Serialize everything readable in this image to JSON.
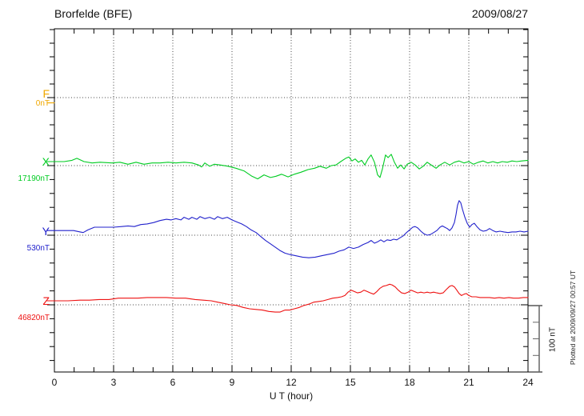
{
  "header": {
    "station_title": "Brorfelde (BFE)",
    "date": "2009/08/27"
  },
  "x_axis": {
    "label": "U T (hour)",
    "ticks": [
      "0",
      "3",
      "6",
      "9",
      "12",
      "15",
      "18",
      "21",
      "24"
    ]
  },
  "scale_bar": {
    "label": "100 nT",
    "span_nT": 100
  },
  "side_note": {
    "plotted_at": "Plotted at 2009/09/27 00:57 UT"
  },
  "chart_data": {
    "type": "line",
    "title": "Brorfelde (BFE) magnetogram for 2009/08/27",
    "xlabel": "U T (hour)",
    "xlim": [
      0,
      24
    ],
    "x_tick_step_hours": 3,
    "grid": "dotted",
    "legend_position": "left-margin",
    "y_scale_note": "100 nT scale bar at lower right; values are nT offsets from each component baseline",
    "series": [
      {
        "name": "F",
        "baseline": "0nT",
        "color": "#f0a800",
        "points": [
          [
            0,
            -8
          ]
        ]
      },
      {
        "name": "X",
        "baseline": "17190nT",
        "color": "#00cc22",
        "points": [
          [
            0,
            6
          ],
          [
            0.49,
            6
          ],
          [
            0.89,
            8
          ],
          [
            1.14,
            11
          ],
          [
            1.5,
            6
          ],
          [
            1.91,
            4
          ],
          [
            2.31,
            5
          ],
          [
            2.92,
            4
          ],
          [
            3.32,
            5
          ],
          [
            3.73,
            2
          ],
          [
            4.14,
            5
          ],
          [
            4.54,
            2
          ],
          [
            4.95,
            4
          ],
          [
            5.35,
            4
          ],
          [
            5.76,
            5
          ],
          [
            6.16,
            4
          ],
          [
            6.57,
            5
          ],
          [
            6.97,
            4
          ],
          [
            7.3,
            1
          ],
          [
            7.46,
            -2
          ],
          [
            7.62,
            4
          ],
          [
            7.87,
            -1
          ],
          [
            8.11,
            2
          ],
          [
            8.39,
            1
          ],
          [
            8.8,
            -1
          ],
          [
            9.2,
            -4
          ],
          [
            9.61,
            -8
          ],
          [
            10.01,
            -16
          ],
          [
            10.3,
            -20
          ],
          [
            10.62,
            -14
          ],
          [
            10.95,
            -18
          ],
          [
            11.23,
            -16
          ],
          [
            11.51,
            -13
          ],
          [
            11.84,
            -17
          ],
          [
            12.16,
            -13
          ],
          [
            12.49,
            -10
          ],
          [
            12.85,
            -6
          ],
          [
            13.18,
            -4
          ],
          [
            13.46,
            -1
          ],
          [
            13.78,
            -4
          ],
          [
            14.03,
            0
          ],
          [
            14.27,
            1
          ],
          [
            14.51,
            6
          ],
          [
            14.76,
            11
          ],
          [
            14.92,
            13
          ],
          [
            15.08,
            7
          ],
          [
            15.24,
            10
          ],
          [
            15.41,
            5
          ],
          [
            15.57,
            8
          ],
          [
            15.73,
            1
          ],
          [
            15.89,
            10
          ],
          [
            16.05,
            16
          ],
          [
            16.22,
            5
          ],
          [
            16.38,
            -14
          ],
          [
            16.5,
            -18
          ],
          [
            16.62,
            -5
          ],
          [
            16.78,
            16
          ],
          [
            16.91,
            12
          ],
          [
            17.07,
            17
          ],
          [
            17.23,
            5
          ],
          [
            17.39,
            -4
          ],
          [
            17.55,
            1
          ],
          [
            17.72,
            -5
          ],
          [
            17.88,
            2
          ],
          [
            18.08,
            5
          ],
          [
            18.28,
            1
          ],
          [
            18.49,
            -5
          ],
          [
            18.69,
            -1
          ],
          [
            18.89,
            5
          ],
          [
            19.14,
            0
          ],
          [
            19.34,
            -4
          ],
          [
            19.54,
            1
          ],
          [
            19.78,
            5
          ],
          [
            20.03,
            1
          ],
          [
            20.27,
            5
          ],
          [
            20.51,
            7
          ],
          [
            20.76,
            4
          ],
          [
            21,
            6
          ],
          [
            21.24,
            2
          ],
          [
            21.49,
            5
          ],
          [
            21.73,
            7
          ],
          [
            21.97,
            4
          ],
          [
            22.22,
            6
          ],
          [
            22.46,
            4
          ],
          [
            22.7,
            6
          ],
          [
            22.95,
            5
          ],
          [
            23.19,
            7
          ],
          [
            23.43,
            6
          ],
          [
            23.68,
            7
          ],
          [
            24,
            8
          ]
        ]
      },
      {
        "name": "Y",
        "baseline": "530nT",
        "color": "#2222cc",
        "points": [
          [
            0,
            7
          ],
          [
            0.49,
            7
          ],
          [
            0.97,
            7
          ],
          [
            1.3,
            5
          ],
          [
            1.46,
            4
          ],
          [
            1.7,
            8
          ],
          [
            2.03,
            12
          ],
          [
            2.51,
            12
          ],
          [
            3,
            12
          ],
          [
            3.41,
            13
          ],
          [
            3.73,
            14
          ],
          [
            4.05,
            13
          ],
          [
            4.38,
            16
          ],
          [
            4.7,
            17
          ],
          [
            5.03,
            19
          ],
          [
            5.35,
            22
          ],
          [
            5.68,
            24
          ],
          [
            5.92,
            23
          ],
          [
            6.16,
            25
          ],
          [
            6.41,
            23
          ],
          [
            6.57,
            27
          ],
          [
            6.81,
            24
          ],
          [
            6.97,
            27
          ],
          [
            7.22,
            24
          ],
          [
            7.38,
            28
          ],
          [
            7.62,
            25
          ],
          [
            7.87,
            27
          ],
          [
            8.11,
            24
          ],
          [
            8.27,
            28
          ],
          [
            8.51,
            25
          ],
          [
            8.76,
            27
          ],
          [
            9,
            23
          ],
          [
            9.24,
            20
          ],
          [
            9.49,
            17
          ],
          [
            9.73,
            13
          ],
          [
            9.97,
            8
          ],
          [
            10.22,
            4
          ],
          [
            10.46,
            -2
          ],
          [
            10.7,
            -8
          ],
          [
            10.95,
            -13
          ],
          [
            11.19,
            -18
          ],
          [
            11.43,
            -23
          ],
          [
            11.68,
            -27
          ],
          [
            11.92,
            -29
          ],
          [
            12.24,
            -31
          ],
          [
            12.57,
            -33
          ],
          [
            12.89,
            -34
          ],
          [
            13.22,
            -33
          ],
          [
            13.54,
            -31
          ],
          [
            13.86,
            -29
          ],
          [
            14.19,
            -27
          ],
          [
            14.43,
            -24
          ],
          [
            14.68,
            -22
          ],
          [
            14.92,
            -18
          ],
          [
            15.16,
            -20
          ],
          [
            15.41,
            -18
          ],
          [
            15.65,
            -14
          ],
          [
            15.89,
            -11
          ],
          [
            16.05,
            -8
          ],
          [
            16.22,
            -12
          ],
          [
            16.38,
            -10
          ],
          [
            16.54,
            -7
          ],
          [
            16.7,
            -10
          ],
          [
            16.86,
            -7
          ],
          [
            17.03,
            -8
          ],
          [
            17.19,
            -6
          ],
          [
            17.35,
            -7
          ],
          [
            17.51,
            -4
          ],
          [
            17.68,
            -1
          ],
          [
            17.84,
            4
          ],
          [
            18,
            8
          ],
          [
            18.16,
            12
          ],
          [
            18.28,
            13
          ],
          [
            18.41,
            11
          ],
          [
            18.57,
            6
          ],
          [
            18.73,
            2
          ],
          [
            18.89,
            0
          ],
          [
            19.05,
            1
          ],
          [
            19.22,
            4
          ],
          [
            19.38,
            7
          ],
          [
            19.54,
            12
          ],
          [
            19.66,
            14
          ],
          [
            19.78,
            12
          ],
          [
            19.91,
            10
          ],
          [
            20.03,
            7
          ],
          [
            20.15,
            11
          ],
          [
            20.27,
            19
          ],
          [
            20.35,
            31
          ],
          [
            20.43,
            45
          ],
          [
            20.51,
            52
          ],
          [
            20.59,
            49
          ],
          [
            20.68,
            39
          ],
          [
            20.8,
            27
          ],
          [
            20.92,
            18
          ],
          [
            21.04,
            12
          ],
          [
            21.16,
            16
          ],
          [
            21.28,
            18
          ],
          [
            21.41,
            13
          ],
          [
            21.57,
            8
          ],
          [
            21.73,
            6
          ],
          [
            21.89,
            7
          ],
          [
            22.05,
            10
          ],
          [
            22.22,
            7
          ],
          [
            22.38,
            5
          ],
          [
            22.58,
            6
          ],
          [
            22.78,
            5
          ],
          [
            22.99,
            4
          ],
          [
            23.19,
            5
          ],
          [
            23.39,
            5
          ],
          [
            23.6,
            6
          ],
          [
            23.8,
            5
          ],
          [
            24,
            6
          ]
        ]
      },
      {
        "name": "Z",
        "baseline": "46820nT",
        "color": "#ee1111",
        "points": [
          [
            0,
            6
          ],
          [
            0.69,
            6
          ],
          [
            1.3,
            7
          ],
          [
            1.78,
            7
          ],
          [
            2.27,
            8
          ],
          [
            2.76,
            8
          ],
          [
            3.24,
            10
          ],
          [
            3.73,
            10
          ],
          [
            4.22,
            10
          ],
          [
            4.7,
            11
          ],
          [
            5.19,
            11
          ],
          [
            5.68,
            11
          ],
          [
            6.16,
            10
          ],
          [
            6.65,
            10
          ],
          [
            7.14,
            8
          ],
          [
            7.54,
            7
          ],
          [
            7.95,
            6
          ],
          [
            8.27,
            4
          ],
          [
            8.6,
            2
          ],
          [
            8.92,
            0
          ],
          [
            9.24,
            -1
          ],
          [
            9.57,
            -4
          ],
          [
            9.89,
            -6
          ],
          [
            10.22,
            -7
          ],
          [
            10.54,
            -8
          ],
          [
            10.87,
            -10
          ],
          [
            11.19,
            -11
          ],
          [
            11.43,
            -11
          ],
          [
            11.68,
            -8
          ],
          [
            11.92,
            -8
          ],
          [
            12.16,
            -6
          ],
          [
            12.41,
            -4
          ],
          [
            12.65,
            -1
          ],
          [
            12.89,
            1
          ],
          [
            13.14,
            4
          ],
          [
            13.38,
            5
          ],
          [
            13.62,
            6
          ],
          [
            13.86,
            8
          ],
          [
            14.11,
            10
          ],
          [
            14.35,
            11
          ],
          [
            14.55,
            12
          ],
          [
            14.72,
            14
          ],
          [
            14.88,
            19
          ],
          [
            15.04,
            22
          ],
          [
            15.2,
            20
          ],
          [
            15.36,
            18
          ],
          [
            15.53,
            19
          ],
          [
            15.69,
            22
          ],
          [
            15.85,
            20
          ],
          [
            16.01,
            18
          ],
          [
            16.18,
            16
          ],
          [
            16.34,
            20
          ],
          [
            16.5,
            25
          ],
          [
            16.66,
            28
          ],
          [
            16.82,
            29
          ],
          [
            16.99,
            31
          ],
          [
            17.11,
            30
          ],
          [
            17.27,
            27
          ],
          [
            17.43,
            22
          ],
          [
            17.59,
            18
          ],
          [
            17.76,
            17
          ],
          [
            17.92,
            19
          ],
          [
            18.08,
            22
          ],
          [
            18.24,
            20
          ],
          [
            18.41,
            18
          ],
          [
            18.57,
            19
          ],
          [
            18.73,
            18
          ],
          [
            18.89,
            19
          ],
          [
            19.05,
            18
          ],
          [
            19.22,
            19
          ],
          [
            19.38,
            18
          ],
          [
            19.54,
            17
          ],
          [
            19.7,
            18
          ],
          [
            19.86,
            23
          ],
          [
            20.03,
            28
          ],
          [
            20.15,
            29
          ],
          [
            20.27,
            27
          ],
          [
            20.39,
            22
          ],
          [
            20.51,
            17
          ],
          [
            20.63,
            14
          ],
          [
            20.76,
            16
          ],
          [
            20.88,
            17
          ],
          [
            21,
            14
          ],
          [
            21.16,
            12
          ],
          [
            21.36,
            12
          ],
          [
            21.57,
            11
          ],
          [
            21.81,
            11
          ],
          [
            22.05,
            11
          ],
          [
            22.3,
            10
          ],
          [
            22.54,
            11
          ],
          [
            22.78,
            10
          ],
          [
            23.03,
            11
          ],
          [
            23.27,
            10
          ],
          [
            23.52,
            10
          ],
          [
            23.76,
            11
          ],
          [
            24,
            11
          ]
        ]
      }
    ]
  }
}
